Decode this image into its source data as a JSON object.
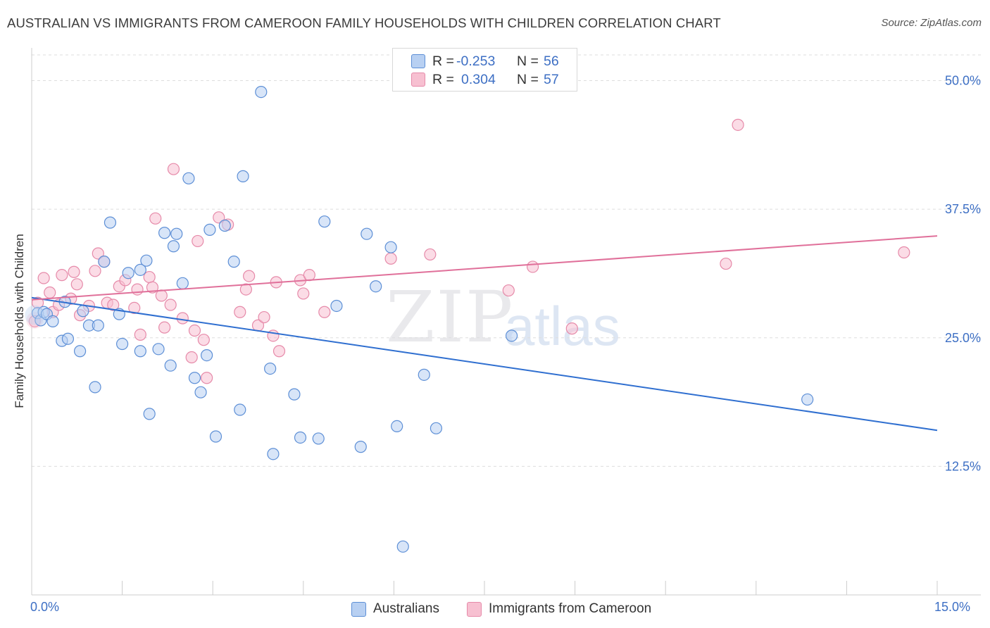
{
  "title": "AUSTRALIAN VS IMMIGRANTS FROM CAMEROON FAMILY HOUSEHOLDS WITH CHILDREN CORRELATION CHART",
  "source": "Source: ZipAtlas.com",
  "watermark": {
    "part1": "ZIP",
    "part2": "atlas"
  },
  "legend": {
    "rows": [
      {
        "r_label": "R =",
        "r_value": "-0.253",
        "n_label": "N =",
        "n_value": "56"
      },
      {
        "r_label": "R =",
        "r_value": "0.304",
        "n_label": "N =",
        "n_value": "57"
      }
    ]
  },
  "bottom_legend": {
    "series1": "Australians",
    "series2": "Immigrants from Cameroon"
  },
  "x_tick_labels": {
    "min": "0.0%",
    "max": "15.0%"
  },
  "colors": {
    "blue_fill": "#b8d0f2",
    "blue_stroke": "#5d8fd6",
    "blue_line": "#2f6fd0",
    "pink_fill": "#f7c0d1",
    "pink_stroke": "#e68aa9",
    "pink_line": "#e0709a",
    "grid": "#dedede",
    "axis_label": "#3d6fc4"
  },
  "chart_data": {
    "type": "scatter",
    "title": "AUSTRALIAN VS IMMIGRANTS FROM CAMEROON FAMILY HOUSEHOLDS WITH CHILDREN CORRELATION CHART",
    "xlabel": "",
    "ylabel": "Family Households with Children",
    "xlim": [
      0,
      15
    ],
    "ylim": [
      0,
      52.5
    ],
    "y_ticks": [
      12.5,
      25.0,
      37.5,
      50.0
    ],
    "y_tick_labels": [
      "12.5%",
      "25.0%",
      "37.5%",
      "50.0%"
    ],
    "x_tick_labels": [
      "0.0%",
      "15.0%"
    ],
    "series": [
      {
        "name": "Australians",
        "r": -0.253,
        "n": 56,
        "trend": {
          "x": [
            0,
            15
          ],
          "y": [
            28.9,
            16.0
          ]
        },
        "points": [
          [
            0.1,
            27.4
          ],
          [
            0.15,
            26.7
          ],
          [
            0.2,
            27.5
          ],
          [
            0.25,
            27.3
          ],
          [
            0.35,
            26.6
          ],
          [
            0.5,
            24.7
          ],
          [
            0.6,
            24.9
          ],
          [
            0.55,
            28.5
          ],
          [
            0.8,
            23.7
          ],
          [
            0.85,
            27.6
          ],
          [
            0.95,
            26.2
          ],
          [
            1.1,
            26.2
          ],
          [
            1.05,
            20.2
          ],
          [
            1.2,
            32.4
          ],
          [
            1.3,
            36.2
          ],
          [
            1.45,
            27.3
          ],
          [
            1.5,
            24.4
          ],
          [
            1.6,
            31.3
          ],
          [
            1.8,
            31.6
          ],
          [
            1.8,
            23.7
          ],
          [
            1.9,
            32.5
          ],
          [
            1.95,
            17.6
          ],
          [
            2.1,
            23.9
          ],
          [
            2.2,
            35.2
          ],
          [
            2.3,
            22.3
          ],
          [
            2.35,
            33.9
          ],
          [
            2.4,
            35.1
          ],
          [
            2.5,
            30.3
          ],
          [
            2.6,
            40.5
          ],
          [
            2.7,
            21.1
          ],
          [
            2.8,
            19.7
          ],
          [
            2.9,
            23.3
          ],
          [
            2.95,
            35.5
          ],
          [
            3.05,
            15.4
          ],
          [
            3.2,
            35.9
          ],
          [
            3.35,
            32.4
          ],
          [
            3.45,
            18.0
          ],
          [
            3.5,
            40.7
          ],
          [
            3.8,
            48.9
          ],
          [
            3.95,
            22.0
          ],
          [
            4.0,
            13.7
          ],
          [
            4.35,
            19.5
          ],
          [
            4.45,
            15.3
          ],
          [
            4.75,
            15.2
          ],
          [
            4.85,
            36.3
          ],
          [
            5.05,
            28.1
          ],
          [
            5.45,
            14.4
          ],
          [
            5.55,
            35.1
          ],
          [
            5.7,
            30.0
          ],
          [
            5.95,
            33.8
          ],
          [
            6.05,
            16.4
          ],
          [
            6.15,
            4.7
          ],
          [
            6.5,
            21.4
          ],
          [
            6.7,
            16.2
          ],
          [
            7.95,
            25.2
          ],
          [
            12.85,
            19.0
          ]
        ]
      },
      {
        "name": "Immigrants from Cameroon",
        "r": 0.304,
        "n": 57,
        "trend": {
          "x": [
            0,
            15
          ],
          "y": [
            28.7,
            34.9
          ]
        },
        "points": [
          [
            0.05,
            26.6
          ],
          [
            0.1,
            28.4
          ],
          [
            0.2,
            30.8
          ],
          [
            0.3,
            29.4
          ],
          [
            0.35,
            27.5
          ],
          [
            0.45,
            28.2
          ],
          [
            0.5,
            31.1
          ],
          [
            0.65,
            28.8
          ],
          [
            0.7,
            31.4
          ],
          [
            0.75,
            30.2
          ],
          [
            0.8,
            27.2
          ],
          [
            0.95,
            28.1
          ],
          [
            1.05,
            31.5
          ],
          [
            1.1,
            33.2
          ],
          [
            1.2,
            32.4
          ],
          [
            1.25,
            28.4
          ],
          [
            1.35,
            28.2
          ],
          [
            1.45,
            30.0
          ],
          [
            1.55,
            30.6
          ],
          [
            1.7,
            27.9
          ],
          [
            1.75,
            29.7
          ],
          [
            1.8,
            25.3
          ],
          [
            1.95,
            30.9
          ],
          [
            2.0,
            29.9
          ],
          [
            2.05,
            36.6
          ],
          [
            2.15,
            29.1
          ],
          [
            2.2,
            26.0
          ],
          [
            2.3,
            28.2
          ],
          [
            2.35,
            41.4
          ],
          [
            2.5,
            26.9
          ],
          [
            2.65,
            23.1
          ],
          [
            2.7,
            25.7
          ],
          [
            2.75,
            34.4
          ],
          [
            2.85,
            24.8
          ],
          [
            2.9,
            21.1
          ],
          [
            3.1,
            36.7
          ],
          [
            3.25,
            36.0
          ],
          [
            3.45,
            27.5
          ],
          [
            3.55,
            29.7
          ],
          [
            3.6,
            31.0
          ],
          [
            3.75,
            26.2
          ],
          [
            3.85,
            27.0
          ],
          [
            4.0,
            25.2
          ],
          [
            4.05,
            30.4
          ],
          [
            4.1,
            23.7
          ],
          [
            4.45,
            30.6
          ],
          [
            4.5,
            29.3
          ],
          [
            4.6,
            31.1
          ],
          [
            4.85,
            27.5
          ],
          [
            5.95,
            32.7
          ],
          [
            6.6,
            33.1
          ],
          [
            7.9,
            29.6
          ],
          [
            8.3,
            31.9
          ],
          [
            8.95,
            25.9
          ],
          [
            11.5,
            32.2
          ],
          [
            11.7,
            45.7
          ],
          [
            14.45,
            33.3
          ]
        ]
      }
    ]
  }
}
